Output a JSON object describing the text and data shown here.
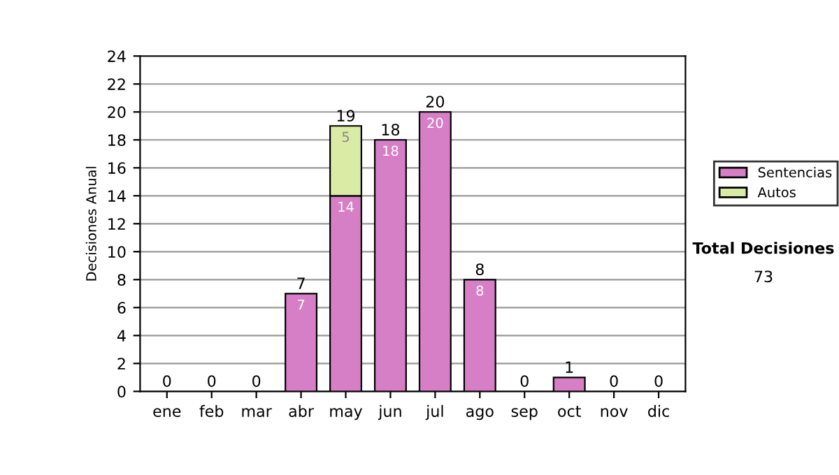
{
  "chart_data": {
    "type": "bar",
    "stacked": true,
    "ylabel": "Decisiones Anual",
    "categories": [
      "ene",
      "feb",
      "mar",
      "abr",
      "may",
      "jun",
      "jul",
      "ago",
      "sep",
      "oct",
      "nov",
      "dic"
    ],
    "series": [
      {
        "name": "Sentencias",
        "color": "#d77fc6",
        "values": [
          0,
          0,
          0,
          7,
          14,
          18,
          20,
          8,
          0,
          1,
          0,
          0
        ],
        "value_labels": [
          null,
          null,
          null,
          "7",
          "14",
          "18",
          "20",
          "8",
          null,
          null,
          null,
          null
        ]
      },
      {
        "name": "Autos",
        "color": "#d9eba5",
        "values": [
          0,
          0,
          0,
          0,
          5,
          0,
          0,
          0,
          0,
          0,
          0,
          0
        ],
        "value_labels": [
          null,
          null,
          null,
          null,
          "5",
          null,
          null,
          null,
          null,
          null,
          null,
          null
        ]
      }
    ],
    "totals": [
      "0",
      "0",
      "0",
      "7",
      "19",
      "18",
      "20",
      "8",
      "0",
      "1",
      "0",
      "0"
    ],
    "ylim": [
      0,
      24
    ],
    "yticks": [
      0,
      2,
      4,
      6,
      8,
      10,
      12,
      14,
      16,
      18,
      20,
      22,
      24
    ],
    "grid": "y",
    "legend": "right",
    "annotations": [
      "Total Decisiones",
      "73"
    ]
  }
}
